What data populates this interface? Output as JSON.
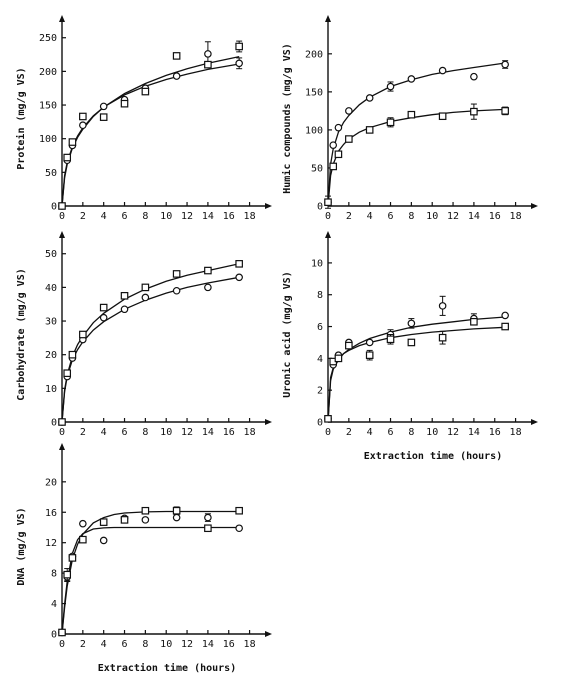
{
  "chart_data": [
    {
      "id": "protein",
      "type": "scatter",
      "ylabel": "Protein (mg/g VS)",
      "xlabel": "",
      "xlim": [
        0,
        19
      ],
      "ylim": [
        0,
        260
      ],
      "xticks": [
        0,
        2,
        4,
        6,
        8,
        10,
        12,
        14,
        16,
        18
      ],
      "yticks": [
        0,
        50,
        100,
        150,
        200,
        250
      ],
      "series": [
        {
          "marker": "circle",
          "x": [
            0,
            0.5,
            1,
            2,
            4,
            6,
            8,
            11,
            14,
            17
          ],
          "y": [
            0,
            68,
            90,
            120,
            148,
            158,
            175,
            193,
            226,
            212
          ],
          "err": [
            0,
            0,
            0,
            0,
            0,
            0,
            0,
            0,
            18,
            8
          ]
        },
        {
          "marker": "square",
          "x": [
            0,
            0.5,
            1,
            2,
            4,
            6,
            8,
            11,
            14,
            17
          ],
          "y": [
            0,
            72,
            95,
            133,
            132,
            152,
            170,
            223,
            210,
            237
          ],
          "err": [
            0,
            0,
            0,
            0,
            0,
            0,
            0,
            0,
            0,
            8
          ]
        }
      ],
      "fits": [
        {
          "x": [
            0,
            0.25,
            0.5,
            1,
            1.5,
            2,
            3,
            4,
            6,
            8,
            10,
            12,
            14,
            17
          ],
          "y": [
            0,
            45,
            65,
            88,
            104,
            116,
            134,
            147,
            165,
            178,
            188,
            196,
            203,
            211
          ]
        },
        {
          "x": [
            0,
            0.25,
            0.5,
            1,
            1.5,
            2,
            3,
            4,
            6,
            8,
            10,
            12,
            14,
            17
          ],
          "y": [
            0,
            42,
            62,
            86,
            102,
            114,
            133,
            147,
            167,
            182,
            194,
            204,
            212,
            222
          ]
        }
      ]
    },
    {
      "id": "humic",
      "type": "scatter",
      "ylabel": "Humic compounds (mg/g VS)",
      "xlabel": "",
      "xlim": [
        0,
        19
      ],
      "ylim": [
        0,
        230
      ],
      "xticks": [
        0,
        2,
        4,
        6,
        8,
        10,
        12,
        14,
        16,
        18
      ],
      "yticks": [
        0,
        50,
        100,
        150,
        200
      ],
      "series": [
        {
          "marker": "circle",
          "x": [
            0,
            0.5,
            1,
            2,
            4,
            6,
            8,
            11,
            14,
            17
          ],
          "y": [
            5,
            80,
            103,
            125,
            142,
            157,
            167,
            178,
            170,
            186
          ],
          "err": [
            8,
            0,
            0,
            0,
            0,
            6,
            0,
            0,
            0,
            5
          ]
        },
        {
          "marker": "square",
          "x": [
            0,
            0.5,
            1,
            2,
            4,
            6,
            8,
            11,
            14,
            17
          ],
          "y": [
            5,
            52,
            68,
            88,
            100,
            110,
            120,
            118,
            124,
            125
          ],
          "err": [
            0,
            0,
            0,
            0,
            0,
            6,
            0,
            0,
            10,
            5
          ]
        }
      ],
      "fits": [
        {
          "x": [
            0,
            0.25,
            0.5,
            1,
            1.5,
            2,
            3,
            4,
            6,
            8,
            10,
            12,
            14,
            17
          ],
          "y": [
            0,
            55,
            75,
            97,
            110,
            119,
            133,
            143,
            157,
            166,
            173,
            178,
            182,
            188
          ]
        },
        {
          "x": [
            0,
            0.25,
            0.5,
            1,
            1.5,
            2,
            3,
            4,
            6,
            8,
            10,
            12,
            14,
            17
          ],
          "y": [
            0,
            40,
            55,
            72,
            81,
            88,
            97,
            103,
            111,
            116,
            120,
            123,
            125,
            127
          ]
        }
      ]
    },
    {
      "id": "carbohydrate",
      "type": "scatter",
      "ylabel": "Carbohydrate (mg/g VS)",
      "xlabel": "",
      "xlim": [
        0,
        19
      ],
      "ylim": [
        0,
        52
      ],
      "xticks": [
        0,
        2,
        4,
        6,
        8,
        10,
        12,
        14,
        16,
        18
      ],
      "yticks": [
        0,
        10,
        20,
        30,
        40,
        50
      ],
      "series": [
        {
          "marker": "circle",
          "x": [
            0,
            0.5,
            1,
            2,
            4,
            6,
            8,
            11,
            14,
            17
          ],
          "y": [
            0,
            13.5,
            19,
            24.5,
            31,
            33.5,
            37,
            39,
            40,
            43
          ],
          "err": [
            0,
            0,
            0,
            0,
            0,
            0,
            0,
            0,
            0,
            0
          ]
        },
        {
          "marker": "square",
          "x": [
            0,
            0.5,
            1,
            2,
            4,
            6,
            8,
            11,
            14,
            17
          ],
          "y": [
            0,
            14.5,
            20,
            26,
            34,
            37.5,
            40,
            44,
            45,
            47
          ],
          "err": [
            0,
            0,
            0,
            0,
            0,
            0,
            0,
            0,
            0,
            0
          ]
        }
      ],
      "fits": [
        {
          "x": [
            0,
            0.25,
            0.5,
            1,
            1.5,
            2,
            3,
            4,
            6,
            8,
            10,
            12,
            14,
            17
          ],
          "y": [
            0,
            9,
            13.5,
            18.5,
            21.5,
            23.8,
            27.3,
            29.8,
            33.5,
            36.2,
            38.3,
            40,
            41.3,
            43
          ]
        },
        {
          "x": [
            0,
            0.25,
            0.5,
            1,
            1.5,
            2,
            3,
            4,
            6,
            8,
            10,
            12,
            14,
            17
          ],
          "y": [
            0,
            9.5,
            14,
            19.5,
            23,
            25.5,
            29.5,
            32.3,
            36.5,
            39.5,
            41.8,
            43.6,
            45,
            47
          ]
        }
      ]
    },
    {
      "id": "uronic",
      "type": "scatter",
      "ylabel": "Uronic acid (mg/g VS)",
      "xlabel": "Extraction time (hours)",
      "xlim": [
        0,
        19
      ],
      "ylim": [
        0,
        11
      ],
      "xticks": [
        0,
        2,
        4,
        6,
        8,
        10,
        12,
        14,
        16,
        18
      ],
      "yticks": [
        0,
        2,
        4,
        6,
        8,
        10
      ],
      "series": [
        {
          "marker": "circle",
          "x": [
            0,
            0.5,
            1,
            2,
            4,
            6,
            8,
            11,
            14,
            17
          ],
          "y": [
            0.2,
            3.6,
            4.2,
            5.0,
            5.0,
            5.5,
            6.2,
            7.3,
            6.5,
            6.7
          ],
          "err": [
            0,
            0,
            0,
            0,
            0,
            0.3,
            0.3,
            0.6,
            0.3,
            0
          ]
        },
        {
          "marker": "square",
          "x": [
            0,
            0.5,
            1,
            2,
            4,
            6,
            8,
            11,
            14,
            17
          ],
          "y": [
            0.2,
            3.8,
            4.0,
            4.8,
            4.2,
            5.2,
            5.0,
            5.3,
            6.3,
            6.0
          ],
          "err": [
            0,
            0,
            0,
            0,
            0.3,
            0.3,
            0,
            0.4,
            0,
            0
          ]
        }
      ],
      "fits": [
        {
          "x": [
            0,
            0.25,
            0.5,
            1,
            1.5,
            2,
            3,
            4,
            6,
            8,
            10,
            12,
            14,
            17
          ],
          "y": [
            0,
            2.6,
            3.3,
            3.9,
            4.3,
            4.55,
            4.95,
            5.25,
            5.65,
            5.95,
            6.15,
            6.3,
            6.45,
            6.6
          ]
        },
        {
          "x": [
            0,
            0.25,
            0.5,
            1,
            1.5,
            2,
            3,
            4,
            6,
            8,
            10,
            12,
            14,
            17
          ],
          "y": [
            0,
            2.8,
            3.4,
            4.0,
            4.3,
            4.5,
            4.8,
            5.0,
            5.3,
            5.5,
            5.65,
            5.75,
            5.85,
            5.95
          ]
        }
      ]
    },
    {
      "id": "dna",
      "type": "scatter",
      "ylabel": "DNA (mg/g VS)",
      "xlabel": "Extraction time (hours)",
      "xlim": [
        0,
        19
      ],
      "ylim": [
        0,
        23
      ],
      "xticks": [
        0,
        2,
        4,
        6,
        8,
        10,
        12,
        14,
        16,
        18
      ],
      "yticks": [
        0,
        4,
        8,
        12,
        16,
        20
      ],
      "series": [
        {
          "marker": "circle",
          "x": [
            0,
            0.5,
            1,
            2,
            4,
            6,
            8,
            11,
            14,
            17
          ],
          "y": [
            0.2,
            7.5,
            10.2,
            14.5,
            12.3,
            15.2,
            15.0,
            15.3,
            15.3,
            13.9
          ],
          "err": [
            0,
            0.6,
            0,
            0,
            0,
            0,
            0,
            0,
            0.5,
            0
          ]
        },
        {
          "marker": "square",
          "x": [
            0,
            0.5,
            1,
            2,
            4,
            6,
            8,
            11,
            14,
            17
          ],
          "y": [
            0.2,
            7.8,
            10.0,
            12.4,
            14.7,
            15.0,
            16.2,
            16.2,
            13.9,
            16.2
          ],
          "err": [
            0,
            0.8,
            0,
            0,
            0,
            0,
            0,
            0.5,
            0.4,
            0
          ]
        }
      ],
      "fits": [
        {
          "x": [
            0,
            0.25,
            0.5,
            1,
            1.5,
            2,
            3,
            4,
            5,
            6,
            8,
            10,
            12,
            14,
            17
          ],
          "y": [
            0,
            3.9,
            6.9,
            10.6,
            12.4,
            13.2,
            13.8,
            13.95,
            14.0,
            14.0,
            14.0,
            14.0,
            14.0,
            14.0,
            14.0
          ]
        },
        {
          "x": [
            0,
            0.25,
            0.5,
            1,
            1.5,
            2,
            3,
            4,
            5,
            6,
            8,
            10,
            12,
            14,
            17
          ],
          "y": [
            0,
            3.5,
            6.3,
            9.8,
            11.8,
            13.1,
            14.6,
            15.3,
            15.7,
            15.9,
            16.05,
            16.1,
            16.1,
            16.1,
            16.1
          ]
        }
      ]
    }
  ]
}
